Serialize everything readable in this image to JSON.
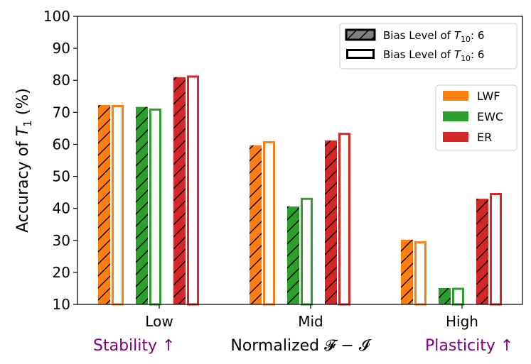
{
  "chart_data": {
    "type": "bar",
    "ylabel_prefix": "Accuracy of ",
    "ylabel_var": "T",
    "ylabel_sub": "1",
    "ylabel_suffix": " (%)",
    "xlabel": "Normalized 𝓕 − 𝓘",
    "x_left_note": "Stability ↑",
    "x_right_note": "Plasticity ↑",
    "note_color": "#800080",
    "ylim": [
      10,
      100
    ],
    "yticks": [
      10,
      20,
      30,
      40,
      50,
      60,
      70,
      80,
      90,
      100
    ],
    "grid": false,
    "categories": [
      "Low",
      "Mid",
      "High"
    ],
    "series": [
      {
        "name": "LWF",
        "color": "#ff7f0e",
        "hatched": [
          72.3,
          59.7,
          30.2
        ],
        "open": [
          72.3,
          61.0,
          29.7
        ]
      },
      {
        "name": "EWC",
        "color": "#2ca02c",
        "hatched": [
          71.7,
          40.6,
          15.1
        ],
        "open": [
          71.2,
          43.3,
          15.2
        ]
      },
      {
        "name": "ER",
        "color": "#d62728",
        "hatched": [
          81.0,
          61.2,
          43.0
        ],
        "open": [
          81.5,
          63.6,
          44.8
        ]
      }
    ],
    "style_legend": [
      {
        "prefix": "Bias Level of ",
        "var": "T",
        "sub": "10",
        "suffix": ": 6",
        "style": "hatched"
      },
      {
        "prefix": "Bias Level of ",
        "var": "T",
        "sub": "10",
        "suffix": ": 6",
        "style": "open"
      }
    ],
    "series_legend_position": "right"
  }
}
